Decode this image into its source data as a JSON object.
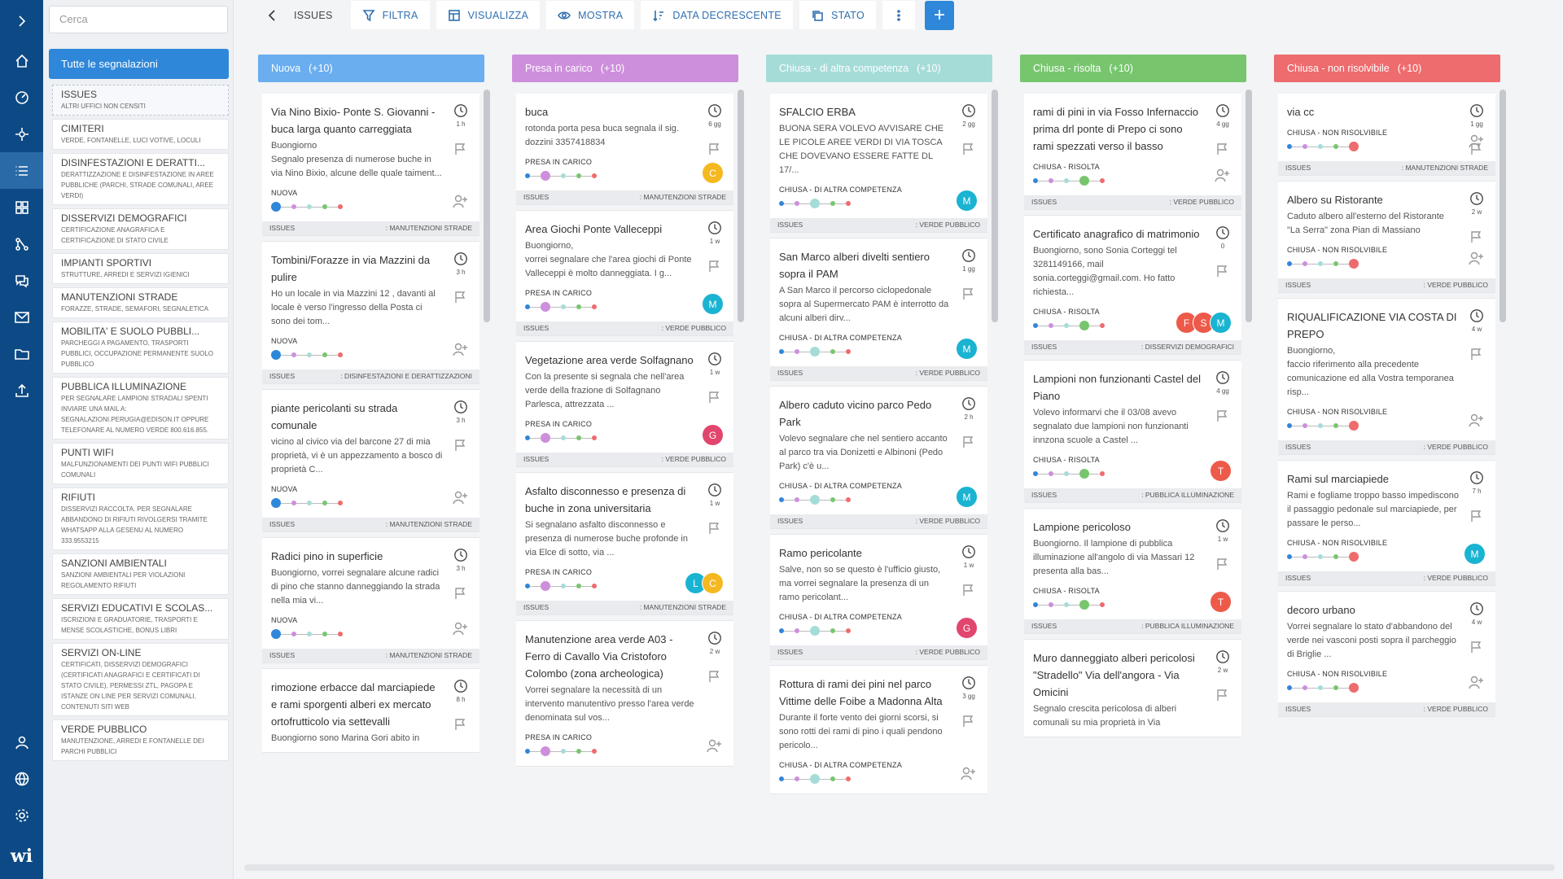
{
  "nav": {
    "icons": [
      "expand-icon",
      "home-icon",
      "dashboard-icon",
      "network-icon",
      "issues-list-icon",
      "grid-icon",
      "workflow-icon",
      "chat-icon",
      "mail-icon",
      "folder-icon",
      "upload-icon"
    ],
    "bottom_icons": [
      "user-icon",
      "globe-icon",
      "settings-icon"
    ],
    "logo": "wi"
  },
  "sidebar": {
    "search_placeholder": "Cerca",
    "all_label": "Tutte le segnalazioni",
    "categories": [
      {
        "name": "ISSUES",
        "desc": "ALTRI UFFICI NON CENSITI"
      },
      {
        "name": "CIMITERI",
        "desc": "VERDE, FONTANELLE, LUCI VOTIVE, LOCULI"
      },
      {
        "name": "DISINFESTAZIONI E DERATTI...",
        "desc": "DERATTIZZAZIONE E DISINFESTAZIONE IN AREE PUBBLICHE (PARCHI, STRADE COMUNALI, AREE VERDI)"
      },
      {
        "name": "DISSERVIZI DEMOGRAFICI",
        "desc": "CERTIFICAZIONE ANAGRAFICA E CERTIFICAZIONE DI STATO CIVILE"
      },
      {
        "name": "IMPIANTI SPORTIVI",
        "desc": "STRUTTURE, ARREDI E SERVIZI IGIENICI"
      },
      {
        "name": "MANUTENZIONI STRADE",
        "desc": "FORAZZE, STRADE, SEMAFORI, SEGNALETICA"
      },
      {
        "name": "MOBILITA' E SUOLO PUBBLI...",
        "desc": "PARCHEGGI A PAGAMENTO, TRASPORTI PUBBLICI, OCCUPAZIONE PERMANENTE SUOLO PUBBLICO"
      },
      {
        "name": "PUBBLICA ILLUMINAZIONE",
        "desc": "PER SEGNALARE LAMPIONI STRADALI SPENTI INVIARE UNA MAIL A: SEGNALAZIONI.PERUGIA@EDISON.IT OPPURE TELEFONARE AL NUMERO VERDE 800.616.855."
      },
      {
        "name": "PUNTI WIFI",
        "desc": "MALFUNZIONAMENTI DEI PUNTI WIFI PUBBLICI COMUNALI"
      },
      {
        "name": "RIFIUTI",
        "desc": "DISSERVIZI RACCOLTA. PER SEGNALARE ABBANDONO DI RIFIUTI RIVOLGERSI TRAMITE WHATSAPP ALLA GESENU AL NUMERO 333.9553215"
      },
      {
        "name": "SANZIONI AMBIENTALI",
        "desc": "SANZIONI AMBIENTALI PER VIOLAZIONI REGOLAMENTO RIFIUTI"
      },
      {
        "name": "SERVIZI EDUCATIVI E SCOLAS...",
        "desc": "ISCRIZIONI E GRADUATORIE, TRASPORTI E MENSE SCOLASTICHE, BONUS LIBRI"
      },
      {
        "name": "SERVIZI ON-LINE",
        "desc": "CERTIFICATI, DISSERVIZI DEMOGRAFICI (CERTIFICATI ANAGRAFICI E CERTIFICATI DI STATO CIVILE), PERMESSI ZTL, PAGOPA E ISTANZE ON LINE PER SERVIZI COMUNALI, CONTENUTI SITI WEB"
      },
      {
        "name": "VERDE PUBBLICO",
        "desc": "MANUTENZIONE, ARREDI E FONTANELLE DEI PARCHI PUBBLICI"
      }
    ]
  },
  "toolbar": {
    "back": "ISSUES",
    "filter": "FILTRA",
    "view": "VISUALIZZA",
    "show": "MOSTRA",
    "sort": "DATA DECRESCENTE",
    "state": "STATO",
    "add": "+"
  },
  "colors": {
    "blue": "#2f87d9",
    "nuova": "#6aaef0",
    "presa": "#cd8fdc",
    "altra": "#a6dcd8",
    "risolta": "#77c66e",
    "non": "#ee6b6e"
  },
  "columns": [
    {
      "title": "Nuova",
      "count": "(+10)",
      "color": "#6aaef0",
      "cards": [
        {
          "title": "Via Nino Bixio- Ponte S. Giovanni - buca larga quanto carreggiata",
          "desc": "Buongiorno\nSegnalo presenza di numerose buche in via Nino Bixio, alcune delle quale taiment...",
          "time": "1 h",
          "status": "NUOVA",
          "step": 0,
          "avatars": [],
          "left": "ISSUES",
          "right": ": MANUTENZIONI STRADE"
        },
        {
          "title": "Tombini/Forazze in via Mazzini da pulire",
          "desc": "Ho un locale in via Mazzini 12 , davanti al locale è verso l'ingresso della Posta ci sono dei tom...",
          "time": "3 h",
          "status": "NUOVA",
          "step": 0,
          "avatars": [],
          "left": "ISSUES",
          "right": ": DISINFESTAZIONI E DERATTIZZAZIONI"
        },
        {
          "title": "piante pericolanti su strada comunale",
          "desc": "vicino al civico via del barcone 27 di mia proprietà, vi è un appezzamento a bosco di proprietà C...",
          "time": "3 h",
          "status": "NUOVA",
          "step": 0,
          "avatars": [],
          "left": "ISSUES",
          "right": ": MANUTENZIONI STRADE"
        },
        {
          "title": "Radici pino in superficie",
          "desc": "Buongiorno, vorrei segnalare alcune radici di pino che stanno danneggiando la strada nella mia vi...",
          "time": "3 h",
          "status": "NUOVA",
          "step": 0,
          "avatars": [],
          "left": "ISSUES",
          "right": ": MANUTENZIONI STRADE"
        },
        {
          "title": "rimozione erbacce dal marciapiede e rami sporgenti alberi ex mercato ortofrutticolo via settevalli",
          "desc": "Buongiorno sono Marina Gori abito in",
          "time": "8 h",
          "status": "",
          "step": -1,
          "avatars": [],
          "left": "",
          "right": ""
        }
      ]
    },
    {
      "title": "Presa in carico",
      "count": "(+10)",
      "color": "#cd8fdc",
      "cards": [
        {
          "title": "buca",
          "desc": "rotonda porta pesa buca segnala il sig. dozzini 3357418834",
          "time": "6 gg",
          "status": "PRESA IN CARICO",
          "step": 1,
          "avatars": [
            [
              "C",
              "#f5b820"
            ]
          ],
          "left": "ISSUES",
          "right": ": MANUTENZIONI STRADE"
        },
        {
          "title": "Area Giochi Ponte Valleceppi",
          "desc": "Buongiorno,\nvorrei segnalare che l'area giochi di Ponte Valleceppi è molto danneggiata. I g...",
          "time": "1 w",
          "status": "PRESA IN CARICO",
          "step": 1,
          "avatars": [
            [
              "M",
              "#1ab3d1"
            ]
          ],
          "left": "ISSUES",
          "right": ": VERDE PUBBLICO"
        },
        {
          "title": "Vegetazione area verde Solfagnano",
          "desc": "Con la presente si segnala che nell'area verde della frazione di Solfagnano Parlesca, attrezzata ...",
          "time": "1 w",
          "status": "PRESA IN CARICO",
          "step": 1,
          "avatars": [
            [
              "G",
              "#e2456e"
            ]
          ],
          "left": "ISSUES",
          "right": ": VERDE PUBBLICO"
        },
        {
          "title": "Asfalto disconnesso e presenza di buche in zona universitaria",
          "desc": "Si segnalano asfalto disconnesso e presenza di numerose buche profonde in via Elce di sotto, via ...",
          "time": "1 w",
          "status": "PRESA IN CARICO",
          "step": 1,
          "avatars": [
            [
              "L",
              "#1ab3d1"
            ],
            [
              "C",
              "#f5b820"
            ]
          ],
          "left": "ISSUES",
          "right": ": MANUTENZIONI STRADE"
        },
        {
          "title": "Manutenzione area verde A03 - Ferro di Cavallo Via Cristoforo Colombo (zona archeologica)",
          "desc": "Vorrei segnalare la necessità di un intervento manutentivo presso l'area verde denominata sul vos...",
          "time": "2 w",
          "status": "PRESA IN CARICO",
          "step": 1,
          "avatars": [],
          "left": "",
          "right": ""
        }
      ]
    },
    {
      "title": "Chiusa - di altra competenza",
      "count": "(+10)",
      "color": "#a6dcd8",
      "cards": [
        {
          "title": "SFALCIO ERBA",
          "desc": "BUONA SERA VOLEVO AVVISARE CHE LE PICOLE AREE VERDI DI VIA TOSCA CHE DOVEVANO ESSERE FATTE DL 17/...",
          "time": "2 gg",
          "status": "CHIUSA - DI ALTRA COMPETENZA",
          "step": 2,
          "avatars": [
            [
              "M",
              "#1ab3d1"
            ]
          ],
          "left": "ISSUES",
          "right": ": VERDE PUBBLICO"
        },
        {
          "title": "San Marco alberi divelti sentiero sopra il PAM",
          "desc": "A San Marco il percorso ciclopedonale sopra al Supermercato PAM è interrotto da alcuni alberi dirv...",
          "time": "1 gg",
          "status": "CHIUSA - DI ALTRA COMPETENZA",
          "step": 2,
          "avatars": [
            [
              "M",
              "#1ab3d1"
            ]
          ],
          "left": "ISSUES",
          "right": ": VERDE PUBBLICO"
        },
        {
          "title": "Albero caduto vicino parco Pedo Park",
          "desc": "Volevo segnalare che nel sentiero accanto al parco tra via Donizetti e Albinoni (Pedo Park) c'è u...",
          "time": "2 h",
          "status": "CHIUSA - DI ALTRA COMPETENZA",
          "step": 2,
          "avatars": [
            [
              "M",
              "#1ab3d1"
            ]
          ],
          "left": "ISSUES",
          "right": ": VERDE PUBBLICO"
        },
        {
          "title": "Ramo pericolante",
          "desc": "Salve, non so se questo è l'ufficio giusto, ma vorrei segnalare la presenza di un ramo pericolant...",
          "time": "1 w",
          "status": "CHIUSA - DI ALTRA COMPETENZA",
          "step": 2,
          "avatars": [
            [
              "G",
              "#e2456e"
            ]
          ],
          "left": "ISSUES",
          "right": ": VERDE PUBBLICO"
        },
        {
          "title": "Rottura di rami dei pini nel parco Vittime delle Foibe a Madonna Alta",
          "desc": "Durante il forte vento dei giorni scorsi, si sono rotti dei rami di pino i quali pendono pericolo...",
          "time": "3 gg",
          "status": "CHIUSA - DI ALTRA COMPETENZA",
          "step": 2,
          "avatars": [],
          "left": "",
          "right": ""
        }
      ]
    },
    {
      "title": "Chiusa - risolta",
      "count": "(+10)",
      "color": "#77c66e",
      "cards": [
        {
          "title": "rami di pini in via Fosso Infernaccio prima drl ponte di Prepo ci sono rami spezzati verso il basso",
          "desc": "",
          "time": "4 gg",
          "status": "CHIUSA - RISOLTA",
          "step": 3,
          "avatars": [],
          "left": "ISSUES",
          "right": ": VERDE PUBBLICO"
        },
        {
          "title": "Certificato anagrafico di matrimonio",
          "desc": "Buongiorno, sono Sonia Corteggi tel 3281149166, mail sonia.corteggi@gmail.com. Ho fatto richiesta...",
          "time": "0",
          "status": "CHIUSA - RISOLTA",
          "step": 3,
          "avatars": [
            [
              "F",
              "#ee5a4a"
            ],
            [
              "S",
              "#ee5a4a"
            ],
            [
              "M",
              "#1ab3d1"
            ]
          ],
          "left": "ISSUES",
          "right": ": DISSERVIZI DEMOGRAFICI"
        },
        {
          "title": "Lampioni non funzionanti Castel del Piano",
          "desc": "Volevo informarvi che il 03/08 avevo segnalato due lampioni non funzionanti innzona scuole a Castel ...",
          "time": "4 gg",
          "status": "CHIUSA - RISOLTA",
          "step": 3,
          "avatars": [
            [
              "T",
              "#ee5a4a"
            ]
          ],
          "left": "ISSUES",
          "right": ": PUBBLICA ILLUMINAZIONE"
        },
        {
          "title": "Lampione pericoloso",
          "desc": "Buongiorno. Il lampione di pubblica illuminazione all'angolo di via Massari 12 presenta alla bas...",
          "time": "1 w",
          "status": "CHIUSA - RISOLTA",
          "step": 3,
          "avatars": [
            [
              "T",
              "#ee5a4a"
            ]
          ],
          "left": "ISSUES",
          "right": ": PUBBLICA ILLUMINAZIONE"
        },
        {
          "title": "Muro danneggiato alberi pericolosi \"Stradello\" Via dell'angora - Via Omicini",
          "desc": "Segnalo crescita pericolosa di alberi comunali su mia proprietà in Via",
          "time": "2 w",
          "status": "",
          "step": -1,
          "avatars": [],
          "left": "",
          "right": ""
        }
      ]
    },
    {
      "title": "Chiusa - non risolvibile",
      "count": "(+10)",
      "color": "#ee6b6e",
      "cards": [
        {
          "title": "via cc",
          "desc": "",
          "time": "1 gg",
          "status": "CHIUSA - NON RISOLVIBILE",
          "step": 4,
          "avatars": [],
          "left": "ISSUES",
          "right": ": MANUTENZIONI STRADE"
        },
        {
          "title": "Albero su Ristorante",
          "desc": "Caduto albero all'esterno del Ristorante \"La Serra\" zona Pian di Massiano",
          "time": "2 w",
          "status": "CHIUSA - NON RISOLVIBILE",
          "step": 4,
          "avatars": [],
          "left": "ISSUES",
          "right": ": VERDE PUBBLICO"
        },
        {
          "title": "RIQUALIFICAZIONE VIA COSTA DI PREPO",
          "desc": "Buongiorno,\nfaccio riferimento alla precedente comunicazione ed alla Vostra temporanea risp...",
          "time": "4 w",
          "status": "CHIUSA - NON RISOLVIBILE",
          "step": 4,
          "avatars": [],
          "left": "ISSUES",
          "right": ": VERDE PUBBLICO"
        },
        {
          "title": "Rami sul marciapiede",
          "desc": "Rami e fogliame troppo basso impediscono il passaggio pedonale sul marciapiede, per passare le perso...",
          "time": "7 h",
          "status": "CHIUSA - NON RISOLVIBILE",
          "step": 4,
          "avatars": [
            [
              "M",
              "#1ab3d1"
            ]
          ],
          "left": "ISSUES",
          "right": ": VERDE PUBBLICO"
        },
        {
          "title": "decoro urbano",
          "desc": "Vorrei segnalare lo stato d'abbandono del verde nei vasconi posti sopra il parcheggio di Briglie ...",
          "time": "4 w",
          "status": "CHIUSA - NON RISOLVIBILE",
          "step": 4,
          "avatars": [],
          "left": "ISSUES",
          "right": ": VERDE PUBBLICO"
        }
      ]
    }
  ]
}
